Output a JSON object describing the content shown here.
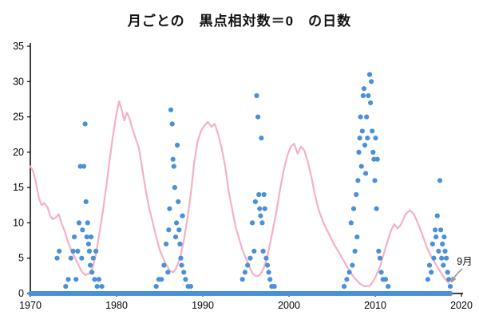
{
  "chart_data": {
    "type": "scatter",
    "title": "月ごとの　黒点相対数＝0　の日数",
    "xlabel": "",
    "ylabel": "",
    "xlim": [
      1970,
      2020
    ],
    "ylim": [
      0,
      35
    ],
    "grid": false,
    "x_ticks": [
      "1970",
      "1980",
      "1990",
      "2000",
      "2010",
      "2020"
    ],
    "y_ticks": [
      "0",
      "5",
      "10",
      "15",
      "20",
      "25",
      "30",
      "35"
    ],
    "colors": {
      "scatter": "#4a90d9",
      "line": "#f6b0c3",
      "axis": "#000000",
      "annotation_arrow": "#999999",
      "annotation_text": "#111111"
    },
    "scatter_series": {
      "zero_run": {
        "from": 1970.0,
        "to": 2018.75,
        "step": 0.0833
      },
      "points": [
        [
          1973.1,
          5
        ],
        [
          1973.35,
          6
        ],
        [
          1974.1,
          1
        ],
        [
          1974.4,
          2
        ],
        [
          1974.7,
          5
        ],
        [
          1974.95,
          6
        ],
        [
          1975.1,
          8
        ],
        [
          1975.3,
          2
        ],
        [
          1975.5,
          6
        ],
        [
          1975.65,
          10
        ],
        [
          1975.8,
          18
        ],
        [
          1975.95,
          5
        ],
        [
          1976.05,
          9
        ],
        [
          1976.2,
          18
        ],
        [
          1976.35,
          24
        ],
        [
          1976.45,
          13
        ],
        [
          1976.55,
          8
        ],
        [
          1976.65,
          10
        ],
        [
          1976.75,
          7
        ],
        [
          1976.85,
          6
        ],
        [
          1976.95,
          4
        ],
        [
          1977.05,
          8
        ],
        [
          1977.15,
          3
        ],
        [
          1977.3,
          5
        ],
        [
          1977.45,
          2
        ],
        [
          1977.6,
          6
        ],
        [
          1977.75,
          1
        ],
        [
          1977.95,
          2
        ],
        [
          1978.3,
          1
        ],
        [
          1984.6,
          1
        ],
        [
          1984.9,
          2
        ],
        [
          1985.2,
          2
        ],
        [
          1985.5,
          4
        ],
        [
          1985.75,
          7
        ],
        [
          1985.95,
          3
        ],
        [
          1986.05,
          9
        ],
        [
          1986.15,
          12
        ],
        [
          1986.3,
          26
        ],
        [
          1986.45,
          24
        ],
        [
          1986.55,
          19
        ],
        [
          1986.65,
          18
        ],
        [
          1986.75,
          15
        ],
        [
          1986.85,
          8
        ],
        [
          1986.95,
          10
        ],
        [
          1987.05,
          21
        ],
        [
          1987.15,
          13
        ],
        [
          1987.25,
          9
        ],
        [
          1987.35,
          7
        ],
        [
          1987.45,
          5
        ],
        [
          1987.55,
          4
        ],
        [
          1987.65,
          11
        ],
        [
          1987.8,
          3
        ],
        [
          1988.0,
          2
        ],
        [
          1988.3,
          1
        ],
        [
          1988.6,
          1
        ],
        [
          1994.6,
          2
        ],
        [
          1994.9,
          3
        ],
        [
          1995.2,
          4
        ],
        [
          1995.5,
          5
        ],
        [
          1995.75,
          10
        ],
        [
          1995.95,
          6
        ],
        [
          1996.1,
          13
        ],
        [
          1996.25,
          28
        ],
        [
          1996.4,
          25
        ],
        [
          1996.5,
          14
        ],
        [
          1996.6,
          12
        ],
        [
          1996.7,
          11
        ],
        [
          1996.8,
          22
        ],
        [
          1996.9,
          10
        ],
        [
          1997.0,
          6
        ],
        [
          1997.1,
          14
        ],
        [
          1997.2,
          12
        ],
        [
          1997.35,
          5
        ],
        [
          1997.5,
          4
        ],
        [
          1997.65,
          3
        ],
        [
          1997.8,
          2
        ],
        [
          1998.0,
          1
        ],
        [
          1998.3,
          1
        ],
        [
          2006.4,
          1
        ],
        [
          2006.7,
          2
        ],
        [
          2007.0,
          3
        ],
        [
          2007.2,
          10
        ],
        [
          2007.35,
          4
        ],
        [
          2007.5,
          12
        ],
        [
          2007.65,
          6
        ],
        [
          2007.8,
          14
        ],
        [
          2007.9,
          8
        ],
        [
          2008.0,
          16
        ],
        [
          2008.1,
          20
        ],
        [
          2008.2,
          22
        ],
        [
          2008.3,
          25
        ],
        [
          2008.4,
          18
        ],
        [
          2008.5,
          23
        ],
        [
          2008.6,
          28
        ],
        [
          2008.7,
          29
        ],
        [
          2008.8,
          21
        ],
        [
          2008.9,
          17
        ],
        [
          2009.0,
          25
        ],
        [
          2009.1,
          22
        ],
        [
          2009.2,
          28
        ],
        [
          2009.35,
          31
        ],
        [
          2009.45,
          27
        ],
        [
          2009.55,
          30
        ],
        [
          2009.65,
          23
        ],
        [
          2009.75,
          20
        ],
        [
          2009.85,
          19
        ],
        [
          2009.95,
          16
        ],
        [
          2010.05,
          22
        ],
        [
          2010.15,
          12
        ],
        [
          2010.25,
          19
        ],
        [
          2010.4,
          6
        ],
        [
          2010.55,
          5
        ],
        [
          2010.7,
          3
        ],
        [
          2010.9,
          2
        ],
        [
          2011.2,
          2
        ],
        [
          2011.5,
          1
        ],
        [
          2016.1,
          2
        ],
        [
          2016.3,
          4
        ],
        [
          2016.5,
          3
        ],
        [
          2016.65,
          7
        ],
        [
          2016.8,
          5
        ],
        [
          2016.95,
          9
        ],
        [
          2017.05,
          8
        ],
        [
          2017.2,
          11
        ],
        [
          2017.35,
          6
        ],
        [
          2017.5,
          16
        ],
        [
          2017.6,
          9
        ],
        [
          2017.7,
          5
        ],
        [
          2017.8,
          7
        ],
        [
          2017.9,
          4
        ],
        [
          2018.0,
          8
        ],
        [
          2018.1,
          6
        ],
        [
          2018.25,
          5
        ],
        [
          2018.4,
          3
        ],
        [
          2018.55,
          2
        ],
        [
          2018.7,
          1
        ]
      ]
    },
    "line_series": {
      "points": [
        [
          1970,
          18
        ],
        [
          1970.3,
          17.4
        ],
        [
          1970.6,
          16
        ],
        [
          1971,
          13.5
        ],
        [
          1971.3,
          12.5
        ],
        [
          1971.6,
          12.8
        ],
        [
          1972,
          12.2
        ],
        [
          1972.3,
          11
        ],
        [
          1972.6,
          10.5
        ],
        [
          1973,
          10.8
        ],
        [
          1973.3,
          11.2
        ],
        [
          1973.6,
          10
        ],
        [
          1974,
          8.8
        ],
        [
          1974.4,
          7.2
        ],
        [
          1974.8,
          6
        ],
        [
          1975.2,
          5
        ],
        [
          1975.6,
          4
        ],
        [
          1976,
          3
        ],
        [
          1976.4,
          2.6
        ],
        [
          1976.8,
          2.8
        ],
        [
          1977.2,
          3.6
        ],
        [
          1977.6,
          5.5
        ],
        [
          1978,
          8.5
        ],
        [
          1978.4,
          11.5
        ],
        [
          1978.8,
          15
        ],
        [
          1979.2,
          19
        ],
        [
          1979.6,
          22.5
        ],
        [
          1980,
          25.5
        ],
        [
          1980.3,
          27.2
        ],
        [
          1980.6,
          26
        ],
        [
          1980.9,
          24.5
        ],
        [
          1981.2,
          25.6
        ],
        [
          1981.5,
          24.8
        ],
        [
          1981.8,
          23.5
        ],
        [
          1982.2,
          22
        ],
        [
          1982.6,
          20.5
        ],
        [
          1983,
          17.5
        ],
        [
          1983.4,
          14.5
        ],
        [
          1983.8,
          12
        ],
        [
          1984.2,
          10
        ],
        [
          1984.6,
          8
        ],
        [
          1985,
          6.2
        ],
        [
          1985.4,
          5
        ],
        [
          1985.8,
          4
        ],
        [
          1986.2,
          3.2
        ],
        [
          1986.6,
          3
        ],
        [
          1987,
          3.8
        ],
        [
          1987.4,
          5.2
        ],
        [
          1987.8,
          7.5
        ],
        [
          1988.2,
          10.5
        ],
        [
          1988.6,
          14
        ],
        [
          1989,
          18.5
        ],
        [
          1989.4,
          21.5
        ],
        [
          1989.8,
          23
        ],
        [
          1990.2,
          23.8
        ],
        [
          1990.6,
          24.3
        ],
        [
          1991,
          23.6
        ],
        [
          1991.4,
          24
        ],
        [
          1991.8,
          22.5
        ],
        [
          1992.2,
          20.5
        ],
        [
          1992.6,
          18
        ],
        [
          1993,
          14.5
        ],
        [
          1993.4,
          12
        ],
        [
          1993.8,
          9.5
        ],
        [
          1994.2,
          7.8
        ],
        [
          1994.6,
          6.2
        ],
        [
          1995,
          5
        ],
        [
          1995.4,
          3.8
        ],
        [
          1995.8,
          2.8
        ],
        [
          1996.2,
          2.4
        ],
        [
          1996.6,
          2.6
        ],
        [
          1997,
          3.4
        ],
        [
          1997.4,
          4.8
        ],
        [
          1997.8,
          7
        ],
        [
          1998.2,
          9.5
        ],
        [
          1998.6,
          12
        ],
        [
          1999,
          15
        ],
        [
          1999.4,
          17.5
        ],
        [
          1999.8,
          19.5
        ],
        [
          2000.2,
          20.8
        ],
        [
          2000.6,
          21.2
        ],
        [
          2001,
          19.8
        ],
        [
          2001.4,
          20.8
        ],
        [
          2001.8,
          20.2
        ],
        [
          2002.2,
          18.5
        ],
        [
          2002.6,
          16.5
        ],
        [
          2003,
          14
        ],
        [
          2003.4,
          12
        ],
        [
          2004,
          10
        ],
        [
          2004.6,
          8.5
        ],
        [
          2005.2,
          7
        ],
        [
          2005.8,
          5.8
        ],
        [
          2006.4,
          4.5
        ],
        [
          2007,
          3.2
        ],
        [
          2007.6,
          2.2
        ],
        [
          2008.2,
          1.4
        ],
        [
          2008.8,
          1
        ],
        [
          2009.4,
          1.1
        ],
        [
          2010,
          2.2
        ],
        [
          2010.6,
          4
        ],
        [
          2011.2,
          6.5
        ],
        [
          2011.8,
          8.8
        ],
        [
          2012.2,
          9.8
        ],
        [
          2012.6,
          9.2
        ],
        [
          2013,
          9.8
        ],
        [
          2013.5,
          11.2
        ],
        [
          2014,
          11.8
        ],
        [
          2014.5,
          11.2
        ],
        [
          2015,
          9.8
        ],
        [
          2015.5,
          8.2
        ],
        [
          2016,
          6.5
        ],
        [
          2016.5,
          5.2
        ],
        [
          2017,
          4.2
        ],
        [
          2017.5,
          3.2
        ],
        [
          2018,
          2.2
        ],
        [
          2018.5,
          1.5
        ]
      ]
    },
    "annotation": {
      "text": "9月",
      "target": [
        2018.7,
        1
      ]
    }
  }
}
